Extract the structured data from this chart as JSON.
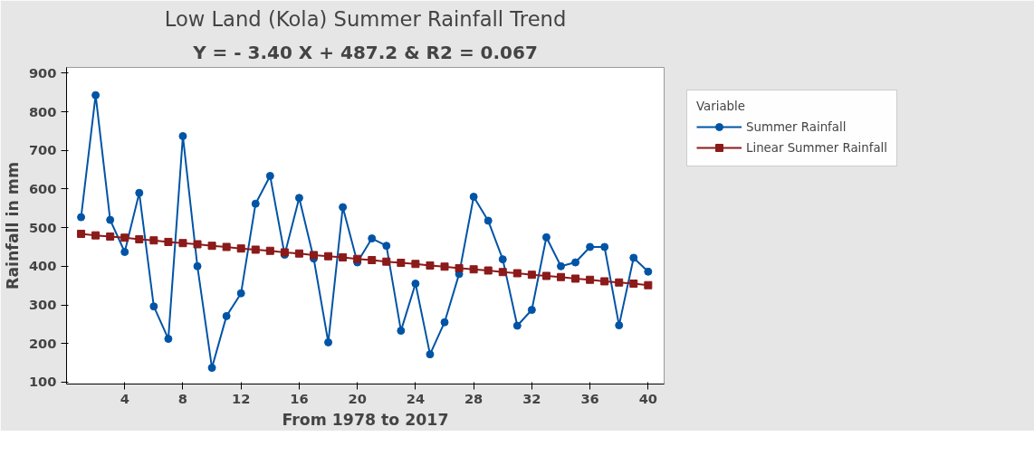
{
  "chart_data": {
    "type": "line",
    "title": "Low Land (Kola) Summer Rainfall Trend",
    "subtitle": "Y = - 3.40 X + 487.2 & R2 = 0.067",
    "xlabel": "From 1978 to 2017",
    "ylabel": "Rainfall in mm",
    "legend_title": "Variable",
    "legend": "right",
    "grid": false,
    "x": [
      1,
      2,
      3,
      4,
      5,
      6,
      7,
      8,
      9,
      10,
      11,
      12,
      13,
      14,
      15,
      16,
      17,
      18,
      19,
      20,
      21,
      22,
      23,
      24,
      25,
      26,
      27,
      28,
      29,
      30,
      31,
      32,
      33,
      34,
      35,
      36,
      37,
      38,
      39,
      40
    ],
    "xlim": [
      0,
      41.1
    ],
    "xticks": [
      4,
      8,
      12,
      16,
      20,
      24,
      28,
      32,
      36,
      40
    ],
    "ylim": [
      95,
      915
    ],
    "yticks": [
      100,
      200,
      300,
      400,
      500,
      600,
      700,
      800,
      900
    ],
    "series": [
      {
        "name": "Summer Rainfall",
        "color": "#0054a6",
        "marker": "circle",
        "values": [
          527,
          843,
          520,
          437,
          590,
          296,
          212,
          737,
          400,
          137,
          271,
          330,
          562,
          634,
          430,
          577,
          420,
          203,
          553,
          410,
          472,
          453,
          233,
          355,
          172,
          255,
          380,
          580,
          518,
          418,
          246,
          287,
          475,
          400,
          410,
          450,
          450,
          247,
          422,
          386
        ]
      },
      {
        "name": "Linear Summer Rainfall",
        "color": "#8b1a1a",
        "marker": "square",
        "values": [
          484,
          480,
          477,
          474,
          470,
          467,
          463,
          460,
          457,
          453,
          450,
          446,
          443,
          440,
          436,
          433,
          429,
          426,
          423,
          419,
          416,
          412,
          409,
          406,
          402,
          399,
          395,
          392,
          389,
          385,
          382,
          378,
          375,
          372,
          368,
          365,
          361,
          358,
          355,
          351
        ]
      }
    ]
  }
}
